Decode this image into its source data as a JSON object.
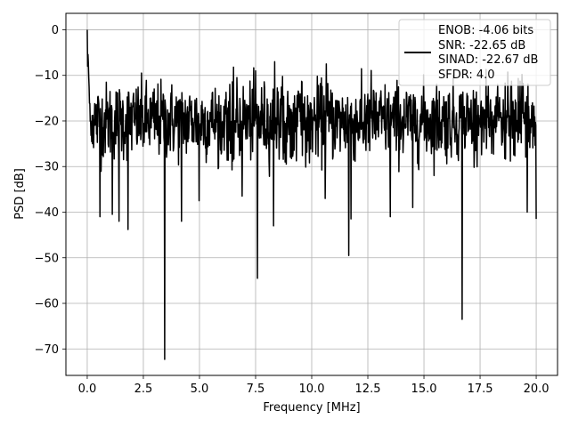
{
  "chart_data": {
    "type": "line",
    "xlabel": "Frequency [MHz]",
    "ylabel": "PSD [dB]",
    "xlim": [
      -0.95,
      20.95
    ],
    "ylim": [
      -75.8,
      3.6
    ],
    "grid": true,
    "legend_placement": "top-right",
    "xticks": [
      0.0,
      2.5,
      5.0,
      7.5,
      10.0,
      12.5,
      15.0,
      17.5,
      20.0
    ],
    "xtick_labels": [
      "0.0",
      "2.5",
      "5.0",
      "7.5",
      "10.0",
      "12.5",
      "15.0",
      "17.5",
      "20.0"
    ],
    "yticks": [
      0,
      -10,
      -20,
      -30,
      -40,
      -50,
      -60,
      -70
    ],
    "ytick_labels": [
      "0",
      "−10",
      "−20",
      "−30",
      "−40",
      "−50",
      "−60",
      "−70"
    ],
    "legend": {
      "lines": [
        "ENOB: -4.06 bits",
        "SNR: -22.65 dB",
        "SINAD: -22.67 dB",
        "SFDR: 4.0"
      ]
    },
    "series": [
      {
        "color": "#000000",
        "x_range": [
          0,
          20
        ],
        "noise_floor": -20,
        "peaks": [
          {
            "x": 0.0,
            "y": 0
          },
          {
            "x": 0.02,
            "y": -8
          },
          {
            "x": 7.5,
            "y": -9
          },
          {
            "x": 8.35,
            "y": -7
          },
          {
            "x": 10.65,
            "y": -7.5
          }
        ],
        "notches": [
          {
            "x": 0.57,
            "y": -41
          },
          {
            "x": 1.12,
            "y": -40.5
          },
          {
            "x": 1.42,
            "y": -42
          },
          {
            "x": 1.82,
            "y": -43.8
          },
          {
            "x": 3.45,
            "y": -72.3
          },
          {
            "x": 4.2,
            "y": -42
          },
          {
            "x": 4.98,
            "y": -37.5
          },
          {
            "x": 6.9,
            "y": -36.5
          },
          {
            "x": 7.58,
            "y": -54.5
          },
          {
            "x": 8.3,
            "y": -43
          },
          {
            "x": 10.6,
            "y": -37
          },
          {
            "x": 11.65,
            "y": -49.5
          },
          {
            "x": 11.75,
            "y": -41.5
          },
          {
            "x": 13.5,
            "y": -41
          },
          {
            "x": 14.5,
            "y": -39
          },
          {
            "x": 16.7,
            "y": -63.5
          },
          {
            "x": 19.6,
            "y": -40
          },
          {
            "x": 20.0,
            "y": -41.5
          }
        ]
      }
    ]
  }
}
